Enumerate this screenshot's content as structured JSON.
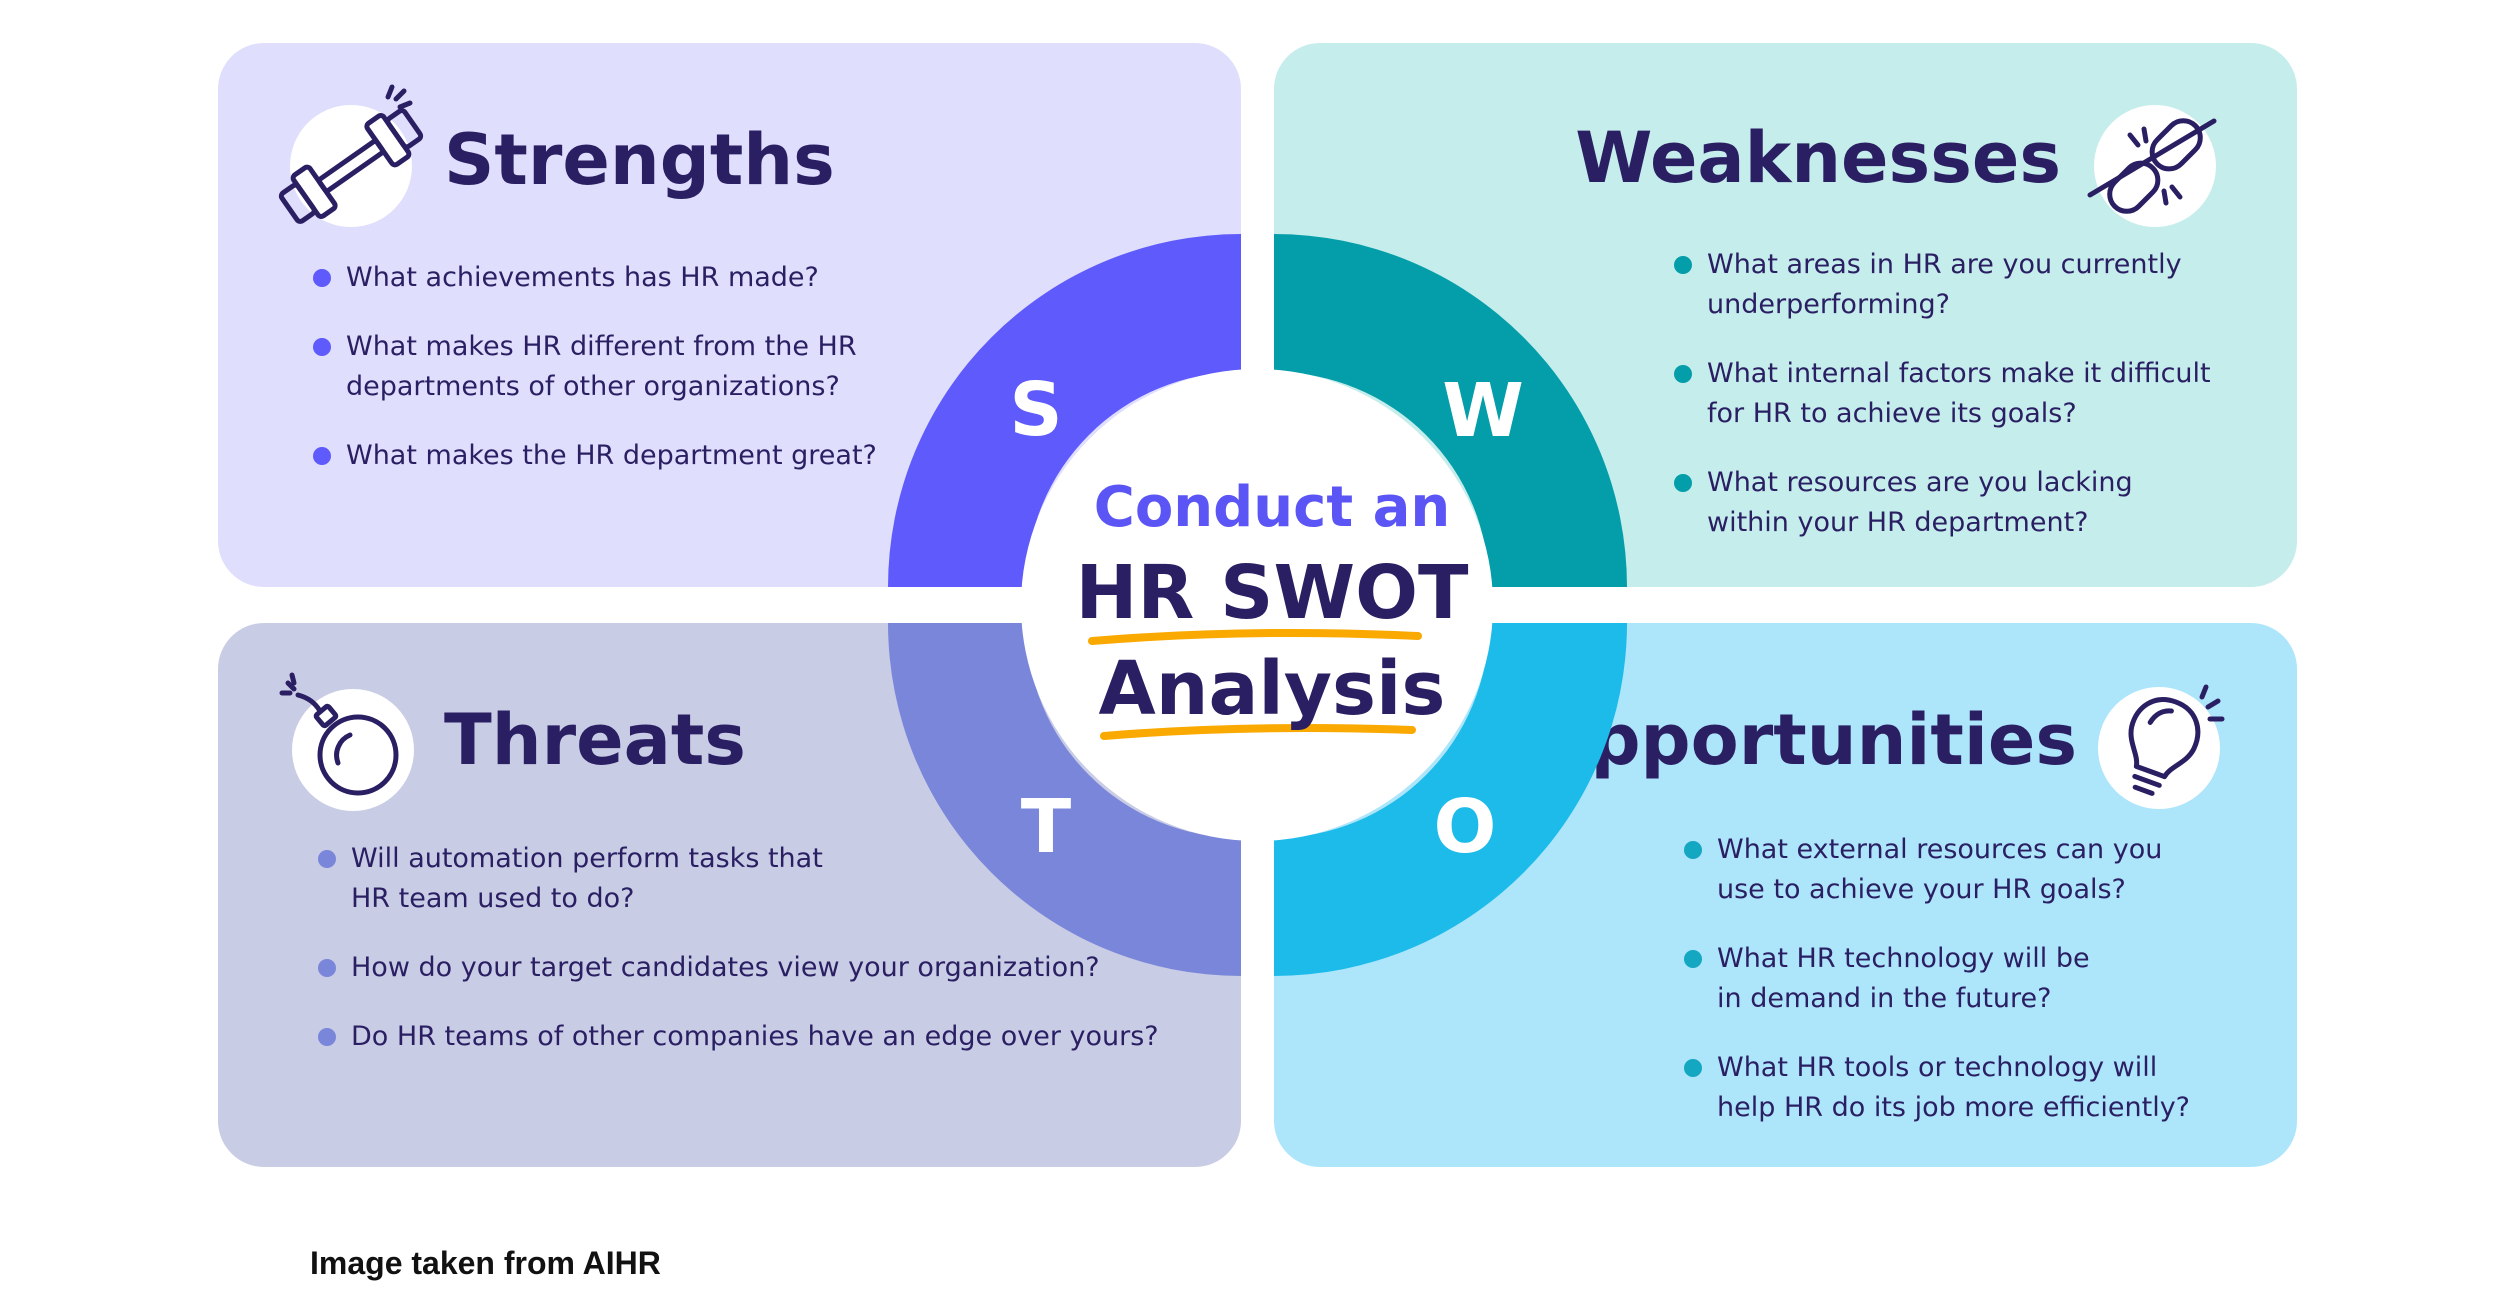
{
  "colors": {
    "strengths_panel": "#dfdefd",
    "weaknesses_panel": "#c5edeb",
    "threats_panel": "#c9cce5",
    "opportunities_panel": "#ade5fb",
    "strengths_ring": "#5e5afb",
    "weaknesses_ring": "#039ea9",
    "threats_ring": "#7a86d9",
    "opportunities_ring": "#1cbbea",
    "title_text": "#2a1f63",
    "accent_purple": "#5b55f5",
    "underline_yellow": "#f9a900"
  },
  "center": {
    "line1": "Conduct an",
    "line2": "HR SWOT",
    "line3": "Analysis"
  },
  "letters": {
    "s": "S",
    "w": "W",
    "t": "T",
    "o": "O"
  },
  "quadrants": {
    "strengths": {
      "title": "Strengths",
      "icon": "dumbbell-icon",
      "questions": [
        "What achievements has HR made?",
        "What makes HR different from the HR\ndepartments of other organizations?",
        "What makes the HR department great?"
      ]
    },
    "weaknesses": {
      "title": "Weaknesses",
      "icon": "broken-chain-icon",
      "questions": [
        "What areas in HR are you currently\nunderperforming?",
        "What internal factors make it difficult\nfor HR to achieve its goals?",
        "What resources are you lacking\nwithin your HR department?"
      ]
    },
    "threats": {
      "title": "Threats",
      "icon": "bomb-icon",
      "questions": [
        "Will automation perform tasks that\nHR team used to do?",
        "How do your target candidates view your organization?",
        "Do HR teams of other companies have an edge over yours?"
      ]
    },
    "opportunities": {
      "title": "Opportunities",
      "icon": "lightbulb-icon",
      "questions": [
        "What external resources can you\nuse to achieve your HR goals?",
        "What HR technology will be\nin demand in the future?",
        "What HR tools or technology will\nhelp HR do its job more efficiently?"
      ]
    }
  },
  "caption": "Image taken from AIHR"
}
